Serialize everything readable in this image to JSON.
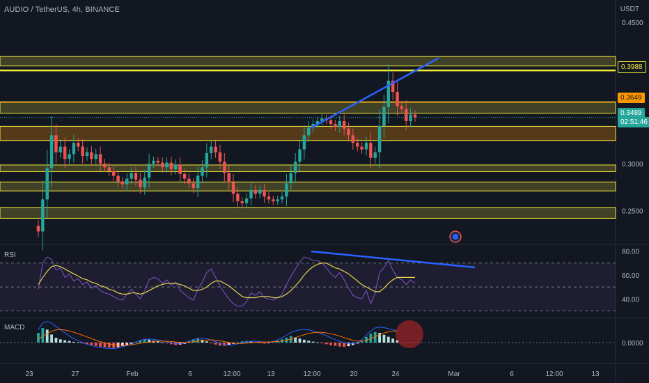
{
  "header": {
    "symbol": "AUDIO / TetherUS, 4h, BINANCE",
    "currency": "USDT"
  },
  "price_tags": {
    "level_high": "0.3988",
    "level_mid": "0.3649",
    "last_price": "0.3489",
    "countdown": "02:51:46"
  },
  "panes": {
    "rsi_label": "RSI",
    "macd_label": "MACD"
  },
  "colors": {
    "background": "#131722",
    "up": "#26a69a",
    "down": "#ef5350",
    "zone_yellow": "#f5eb3b",
    "zone_orange": "#ff9800",
    "trendline": "#2962ff",
    "rsi_line": "#7e57c2",
    "rsi_ma": "#e5d54a",
    "macd_line": "#2962ff",
    "signal_line": "#ff6d00"
  },
  "chart_data": [
    {
      "type": "candlestick",
      "title": "AUDIO / TetherUS, 4h, BINANCE",
      "ylim": [
        0.215,
        0.455
      ],
      "y_ticks": [
        "0.4500",
        "0.3000",
        "0.2500"
      ],
      "x_ticks": [
        "23",
        "27",
        "Feb",
        "6",
        "12:00",
        "13",
        "12:00",
        "20",
        "24",
        "Mar",
        "6",
        "12:00",
        "13"
      ],
      "last_price": 0.3489,
      "horizontal_levels": [
        0.3988,
        0.3649
      ],
      "zones": [
        {
          "from": 0.4135,
          "to": 0.4035,
          "color": "yellow"
        },
        {
          "from": 0.3655,
          "to": 0.3535,
          "color": "yellow"
        },
        {
          "from": 0.3395,
          "to": 0.3245,
          "color": "orange"
        },
        {
          "from": 0.2985,
          "to": 0.2915,
          "color": "yellow"
        },
        {
          "from": 0.2805,
          "to": 0.271,
          "color": "yellow"
        },
        {
          "from": 0.2535,
          "to": 0.242,
          "color": "yellow"
        }
      ],
      "trendline": {
        "from": [
          9.4,
          0.338
        ],
        "to": [
          13.3,
          0.412
        ]
      },
      "closes": [
        0.228,
        0.262,
        0.295,
        0.33,
        0.312,
        0.318,
        0.305,
        0.31,
        0.322,
        0.318,
        0.308,
        0.312,
        0.305,
        0.31,
        0.3,
        0.296,
        0.292,
        0.287,
        0.281,
        0.278,
        0.284,
        0.29,
        0.283,
        0.275,
        0.285,
        0.3,
        0.303,
        0.301,
        0.296,
        0.301,
        0.294,
        0.299,
        0.289,
        0.284,
        0.279,
        0.274,
        0.287,
        0.296,
        0.311,
        0.318,
        0.312,
        0.302,
        0.29,
        0.28,
        0.268,
        0.26,
        0.258,
        0.263,
        0.272,
        0.268,
        0.272,
        0.265,
        0.262,
        0.26,
        0.262,
        0.265,
        0.279,
        0.29,
        0.302,
        0.315,
        0.33,
        0.338,
        0.342,
        0.345,
        0.348,
        0.346,
        0.342,
        0.339,
        0.345,
        0.337,
        0.33,
        0.322,
        0.318,
        0.315,
        0.322,
        0.306,
        0.312,
        0.34,
        0.36,
        0.388,
        0.376,
        0.361,
        0.358,
        0.345,
        0.352,
        0.3489
      ]
    },
    {
      "type": "line",
      "title": "RSI",
      "ylim": [
        25,
        85
      ],
      "y_ticks": [
        "80.00",
        "60.00",
        "40.00"
      ],
      "bands": [
        70,
        50,
        30
      ],
      "trendline": {
        "from": [
          9.4,
          80
        ],
        "to": [
          14.5,
          66
        ]
      },
      "series": [
        {
          "values": [
            48,
            70,
            75,
            73,
            64,
            66,
            58,
            61,
            55,
            57,
            52,
            54,
            49,
            51,
            47,
            45,
            44,
            42,
            40,
            39,
            44,
            48,
            44,
            40,
            47,
            56,
            58,
            57,
            53,
            56,
            51,
            54,
            47,
            44,
            41,
            39,
            48,
            54,
            62,
            65,
            58,
            51,
            45,
            40,
            36,
            34,
            34,
            38,
            45,
            43,
            46,
            41,
            40,
            39,
            41,
            44,
            52,
            59,
            65,
            71,
            75,
            74,
            72,
            72,
            70,
            66,
            61,
            58,
            62,
            56,
            49,
            43,
            41,
            40,
            47,
            36,
            45,
            62,
            66,
            72,
            64,
            58,
            56,
            52,
            56,
            53
          ]
        },
        {
          "values": [
            52,
            58,
            63,
            67,
            68,
            67,
            65,
            63,
            61,
            59,
            57,
            56,
            54,
            53,
            51,
            50,
            48,
            47,
            45,
            44,
            44,
            45,
            45,
            44,
            45,
            47,
            49,
            51,
            52,
            53,
            53,
            53,
            52,
            51,
            49,
            47,
            47,
            48,
            50,
            53,
            55,
            55,
            53,
            51,
            48,
            45,
            42,
            41,
            41,
            41,
            42,
            42,
            42,
            41,
            41,
            42,
            44,
            47,
            51,
            55,
            60,
            64,
            67,
            69,
            70,
            70,
            68,
            66,
            65,
            63,
            61,
            58,
            55,
            52,
            50,
            48,
            46,
            46,
            49,
            53,
            56,
            58,
            58,
            58,
            58,
            58
          ]
        }
      ]
    },
    {
      "type": "bar",
      "title": "MACD",
      "ylim": [
        -0.012,
        0.015
      ],
      "y_ticks": [
        "0.0000"
      ],
      "histogram": [
        0.006,
        0.009,
        0.008,
        0.005,
        0.003,
        0.002,
        0.0015,
        0.001,
        0.0005,
        0.0002,
        -0.0005,
        -0.001,
        -0.0015,
        -0.002,
        -0.0025,
        -0.0028,
        -0.003,
        -0.0032,
        -0.0028,
        -0.0022,
        -0.0015,
        -0.0008,
        0.0005,
        0.0015,
        0.002,
        0.0018,
        0.0012,
        0.0008,
        0.0002,
        -0.0004,
        -0.001,
        -0.0015,
        -0.0012,
        -0.0008,
        0.001,
        0.002,
        0.0025,
        0.0018,
        0.0008,
        -0.0004,
        -0.0012,
        -0.0018,
        -0.002,
        -0.0015,
        -0.0008,
        0.0002,
        0.0008,
        0.001,
        0.0006,
        0.0002,
        -0.0002,
        -0.0006,
        -0.0004,
        0.0002,
        0.0012,
        0.002,
        0.003,
        0.004,
        0.0032,
        0.0025,
        0.0018,
        0.0012,
        0.0006,
        0.0002,
        -0.0004,
        -0.001,
        -0.0016,
        -0.002,
        -0.0024,
        -0.0026,
        -0.0022,
        -0.0015,
        -0.0006,
        0.0012,
        0.0035,
        0.0055,
        0.0065,
        0.006,
        0.0048,
        0.0036,
        0.0025,
        0.0015
      ],
      "series": [
        {
          "name": "MACD",
          "values": [
            0.008,
            0.012,
            0.013,
            0.012,
            0.01,
            0.008,
            0.006,
            0.004,
            0.0025,
            0.0012,
            0.0,
            -0.001,
            -0.0018,
            -0.0025,
            -0.003,
            -0.0034,
            -0.0036,
            -0.0037,
            -0.0033,
            -0.0026,
            -0.0018,
            -0.001,
            0.0003,
            0.0014,
            0.002,
            0.0022,
            0.002,
            0.0016,
            0.0011,
            0.0006,
            0.0,
            -0.0005,
            -0.0006,
            -0.0003,
            0.0008,
            0.0018,
            0.0026,
            0.0028,
            0.0024,
            0.0016,
            0.0006,
            -0.0004,
            -0.0012,
            -0.0015,
            -0.0014,
            -0.0008,
            0.0,
            0.0006,
            0.0008,
            0.0008,
            0.0006,
            0.0003,
            0.0003,
            0.0008,
            0.0018,
            0.003,
            0.0045,
            0.0062,
            0.0072,
            0.0078,
            0.008,
            0.0078,
            0.0072,
            0.0064,
            0.0054,
            0.0042,
            0.003,
            0.0018,
            0.0008,
            -0.0002,
            -0.0006,
            -0.0006,
            0.0,
            0.0018,
            0.0045,
            0.0072,
            0.009,
            0.0095,
            0.0092,
            0.0086,
            0.008,
            0.0072
          ]
        },
        {
          "name": "Signal",
          "values": [
            0.002,
            0.004,
            0.0055,
            0.007,
            0.0078,
            0.008,
            0.0077,
            0.0072,
            0.0064,
            0.0055,
            0.0045,
            0.0035,
            0.0025,
            0.0015,
            0.0006,
            -0.0002,
            -0.0008,
            -0.0013,
            -0.0016,
            -0.0017,
            -0.0016,
            -0.0013,
            -0.0009,
            -0.0004,
            0.0,
            0.0004,
            0.0007,
            0.0009,
            0.0009,
            0.0008,
            0.0007,
            0.0004,
            0.0002,
            0.0001,
            0.0002,
            0.0005,
            0.0009,
            0.0013,
            0.0016,
            0.0017,
            0.0015,
            0.0011,
            0.0006,
            0.0001,
            -0.0003,
            -0.0005,
            -0.0005,
            -0.0003,
            -0.0001,
            0.0001,
            0.0003,
            0.0004,
            0.0004,
            0.0005,
            0.0007,
            0.001,
            0.0015,
            0.0022,
            0.0031,
            0.004,
            0.0049,
            0.0056,
            0.0061,
            0.0063,
            0.0063,
            0.006,
            0.0055,
            0.0048,
            0.004,
            0.0031,
            0.0022,
            0.0014,
            0.0009,
            0.0009,
            0.0015,
            0.0025,
            0.0037,
            0.0049,
            0.0059,
            0.0066,
            0.0071,
            0.0072
          ]
        }
      ]
    }
  ]
}
